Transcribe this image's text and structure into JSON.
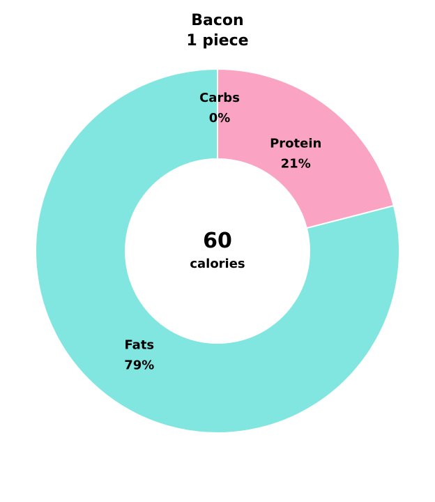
{
  "chart_data": {
    "type": "pie",
    "title": "Bacon",
    "subtitle": "1 piece",
    "center": {
      "value": "60",
      "unit": "calories"
    },
    "slices": [
      {
        "label": "Protein",
        "percent": 21,
        "percent_label": "21%",
        "color": "#FAA3C3"
      },
      {
        "label": "Fats",
        "percent": 79,
        "percent_label": "79%",
        "color": "#81E6E0"
      },
      {
        "label": "Carbs",
        "percent": 0,
        "percent_label": "0%",
        "color": "#FFD27F"
      }
    ]
  }
}
